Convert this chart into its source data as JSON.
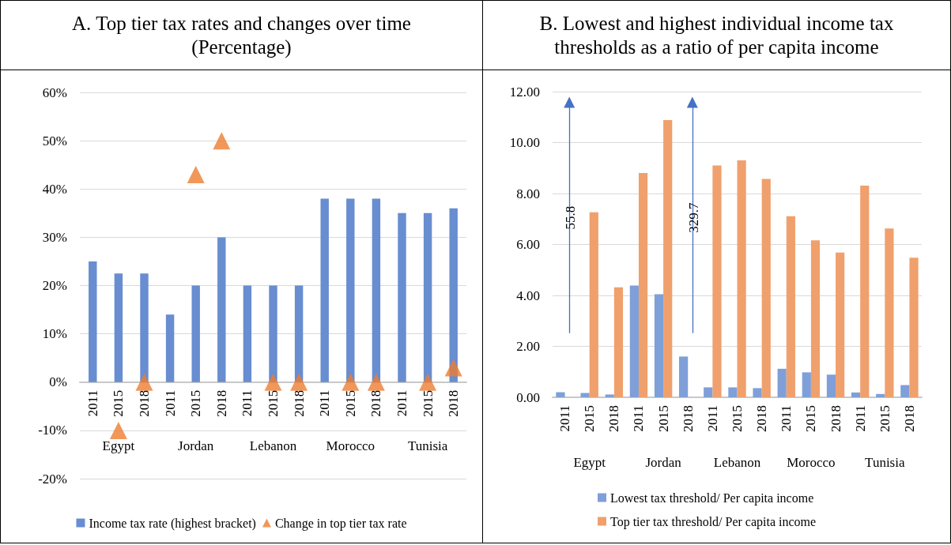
{
  "chart_data": [
    {
      "type": "bar",
      "title": "A.  Top tier tax rates and changes over time (Percentage)",
      "categories": [
        "2011",
        "2015",
        "2018",
        "2011",
        "2015",
        "2018",
        "2011",
        "2015",
        "2018",
        "2011",
        "2015",
        "2018",
        "2011",
        "2015",
        "2018"
      ],
      "annotations": [
        "Egypt",
        "Jordan",
        "Lebanon",
        "Morocco",
        "Tunisia"
      ],
      "series": [
        {
          "type": "bar",
          "name": "Income tax rate (highest bracket)",
          "color": "#688dd0",
          "values": [
            25,
            22.5,
            22.5,
            14,
            20,
            30,
            20,
            20,
            20,
            38,
            38,
            38,
            35,
            35,
            36
          ]
        },
        {
          "type": "scatter",
          "name": "Change in top tier tax rate",
          "color": "#ed7d31",
          "values": [
            null,
            -10,
            0,
            null,
            43,
            50,
            null,
            0,
            0,
            null,
            0,
            0,
            null,
            0,
            3
          ]
        }
      ],
      "marker": "triangle",
      "ylim": [
        -20,
        60
      ],
      "yticks": [
        {
          "value": -20,
          "label": "-20%"
        },
        {
          "value": -10,
          "label": "-10%"
        },
        {
          "value": 0,
          "label": "0%"
        },
        {
          "value": 10,
          "label": "10%"
        },
        {
          "value": 20,
          "label": "20%"
        },
        {
          "value": 30,
          "label": "30%"
        },
        {
          "value": 40,
          "label": "40%"
        },
        {
          "value": 50,
          "label": "50%"
        },
        {
          "value": 60,
          "label": "60%"
        }
      ],
      "grid": "y",
      "legend": "bottom"
    },
    {
      "type": "bar",
      "title": "B.  Lowest and highest individual income tax thresholds as a ratio of per capita income",
      "categories": [
        "2011",
        "2015",
        "2018",
        "2011",
        "2015",
        "2018",
        "2011",
        "2015",
        "2018",
        "2011",
        "2015",
        "2018",
        "2011",
        "2015",
        "2018"
      ],
      "annotations": [
        "Egypt",
        "Jordan",
        "Lebanon",
        "Morocco",
        "Tunisia",
        {
          "text": "55.8"
        },
        {
          "text": "329.7"
        }
      ],
      "series": [
        {
          "name": "Lowest tax threshold/ Per capita income",
          "color": "#7f9fd9",
          "values": [
            0.2,
            0.17,
            0.11,
            4.39,
            4.05,
            1.6,
            0.39,
            0.39,
            0.36,
            1.12,
            0.98,
            0.89,
            0.19,
            0.13,
            0.48
          ]
        },
        {
          "name": "Top tier tax threshold/ Per capita income",
          "color": "#f0a06c",
          "values": [
            null,
            7.26,
            4.32,
            8.81,
            10.88,
            null,
            9.1,
            9.3,
            8.57,
            7.11,
            6.16,
            5.68,
            8.31,
            6.63,
            5.48
          ]
        }
      ],
      "ylim": [
        0,
        12
      ],
      "yticks": [
        {
          "value": 0,
          "label": "0.00"
        },
        {
          "value": 2,
          "label": "2.00"
        },
        {
          "value": 4,
          "label": "4.00"
        },
        {
          "value": 6,
          "label": "6.00"
        },
        {
          "value": 8,
          "label": "8.00"
        },
        {
          "value": 10,
          "label": "10.00"
        },
        {
          "value": 12,
          "label": "12.00"
        }
      ],
      "grid": "y",
      "legend": "bottom"
    }
  ]
}
